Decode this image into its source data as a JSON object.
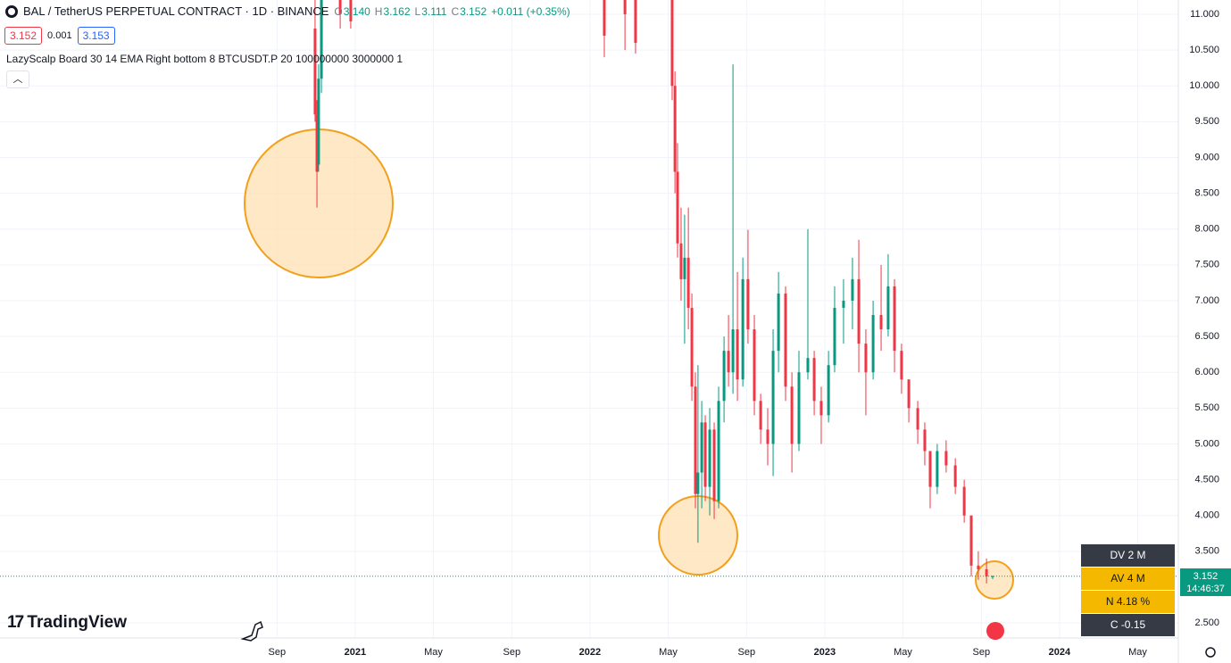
{
  "header": {
    "title": "BAL / TetherUS PERPETUAL CONTRACT · 1D · BINANCE",
    "ohlc": [
      "O",
      "3.140",
      "H",
      "3.162",
      "L",
      "3.111",
      "C",
      "3.152",
      "+0.011 (+0.35%)"
    ]
  },
  "badges": {
    "bid": "3.152",
    "spread": "0.001",
    "ask": "3.153"
  },
  "indicator": "LazyScalp Board 30 14 EMA Right bottom 8 BTCUSDT.P 20 100000000 3000000 1",
  "brand": "TradingView",
  "table": {
    "rows": [
      "DV 2 M",
      "AV 4 M",
      "N 4.18 %",
      "C  -0.15"
    ]
  },
  "chart_data": {
    "type": "candlestick",
    "x": [
      2020.829,
      2020.837,
      2020.844,
      2020.856,
      2020.936,
      2020.981,
      2022.061,
      2022.149,
      2022.194,
      2022.35,
      2022.362,
      2022.373,
      2022.388,
      2022.403,
      2022.419,
      2022.434,
      2022.449,
      2022.46,
      2022.476,
      2022.491,
      2022.51,
      2022.529,
      2022.548,
      2022.571,
      2022.59,
      2022.609,
      2022.628,
      2022.651,
      2022.673,
      2022.7,
      2022.727,
      2022.757,
      2022.78,
      2022.803,
      2022.833,
      2022.86,
      2022.89,
      2022.928,
      2022.955,
      2022.985,
      2023.016,
      2023.042,
      2023.08,
      2023.118,
      2023.145,
      2023.175,
      2023.206,
      2023.24,
      2023.27,
      2023.297,
      2023.327,
      2023.358,
      2023.396,
      2023.426,
      2023.449,
      2023.479,
      2023.517,
      2023.556,
      2023.594,
      2023.624,
      2023.654,
      2023.689,
      2023.715
    ],
    "open": [
      10.8,
      9.6,
      8.9,
      10.1,
      11.4,
      11.3,
      11.3,
      11.2,
      11.4,
      11.2,
      10.0,
      8.8,
      7.8,
      7.3,
      7.6,
      6.9,
      5.8,
      4.3,
      4.6,
      5.3,
      4.4,
      5.2,
      4.2,
      5.6,
      6.3,
      6.0,
      6.6,
      5.9,
      7.3,
      6.6,
      5.6,
      5.2,
      5.0,
      6.3,
      7.1,
      5.8,
      5.0,
      6.0,
      6.2,
      5.6,
      5.4,
      6.1,
      6.9,
      7.0,
      7.3,
      6.4,
      6.0,
      6.8,
      6.6,
      7.2,
      6.3,
      5.9,
      5.5,
      5.2,
      4.9,
      4.4,
      4.9,
      4.7,
      4.4,
      4.0,
      3.3,
      3.25,
      3.14
    ],
    "high": [
      11.5,
      9.8,
      10.3,
      11.5,
      11.6,
      11.5,
      11.5,
      11.4,
      11.5,
      11.3,
      10.2,
      9.2,
      8.3,
      8.2,
      8.3,
      7.1,
      6.0,
      6.1,
      5.6,
      5.4,
      5.5,
      5.3,
      5.8,
      6.5,
      6.8,
      10.3,
      7.4,
      7.6,
      7.99,
      6.8,
      5.7,
      5.5,
      6.6,
      7.4,
      7.2,
      6.0,
      6.3,
      8.0,
      6.3,
      5.8,
      6.3,
      7.2,
      7.3,
      7.6,
      7.85,
      6.6,
      7.0,
      7.5,
      7.65,
      7.3,
      6.4,
      5.9,
      5.6,
      5.3,
      4.9,
      5.0,
      5.05,
      4.8,
      4.5,
      4.0,
      3.5,
      3.4,
      3.162
    ],
    "low": [
      9.5,
      8.3,
      8.8,
      9.9,
      10.8,
      10.8,
      10.4,
      10.5,
      10.45,
      9.8,
      8.5,
      7.6,
      7.0,
      6.4,
      6.6,
      5.6,
      4.1,
      3.62,
      4.1,
      4.2,
      4.0,
      3.95,
      4.1,
      5.3,
      5.8,
      5.7,
      5.6,
      5.8,
      6.4,
      5.4,
      5.0,
      4.7,
      4.55,
      6.0,
      5.6,
      4.6,
      4.9,
      5.9,
      5.4,
      5.0,
      5.3,
      6.0,
      6.4,
      6.6,
      6.0,
      5.4,
      5.9,
      6.3,
      6.5,
      6.0,
      5.7,
      5.3,
      5.0,
      4.7,
      4.1,
      4.3,
      4.6,
      4.3,
      3.9,
      3.15,
      3.1,
      3.05,
      3.111
    ],
    "close": [
      9.6,
      8.8,
      10.1,
      11.3,
      11.0,
      10.9,
      10.7,
      11.0,
      10.6,
      10.0,
      8.8,
      7.8,
      7.3,
      7.6,
      6.9,
      5.8,
      4.3,
      4.6,
      5.3,
      4.4,
      5.2,
      4.2,
      5.6,
      6.3,
      6.0,
      6.6,
      5.9,
      7.3,
      6.6,
      5.6,
      5.2,
      5.0,
      6.3,
      7.1,
      5.8,
      5.0,
      6.0,
      6.2,
      5.6,
      5.4,
      6.1,
      6.9,
      7.0,
      7.3,
      6.4,
      6.0,
      6.8,
      6.6,
      7.2,
      6.3,
      5.9,
      5.5,
      5.2,
      4.9,
      4.4,
      4.9,
      4.7,
      4.4,
      4.0,
      3.3,
      3.25,
      3.15,
      3.152
    ],
    "up_color": "#089981",
    "down_color": "#f23645",
    "xlim": [
      2019.487,
      2024.506
    ],
    "xticks": [
      {
        "value": 2020.667,
        "label": "Sep"
      },
      2021,
      {
        "value": 2021.333,
        "label": "May"
      },
      {
        "value": 2021.667,
        "label": "Sep"
      },
      2022,
      {
        "value": 2022.333,
        "label": "May"
      },
      {
        "value": 2022.667,
        "label": "Sep"
      },
      2023,
      {
        "value": 2023.333,
        "label": "May"
      },
      {
        "value": 2023.667,
        "label": "Sep"
      },
      2024,
      {
        "value": 2024.333,
        "label": "May"
      }
    ],
    "ylim": [
      2.289,
      11.199
    ],
    "yticks": [
      {
        "value": 2.5,
        "label": "2.500"
      },
      {
        "value": 3.5,
        "label": "3.500"
      },
      {
        "value": 4,
        "label": "4.000"
      },
      {
        "value": 4.5,
        "label": "4.500"
      },
      {
        "value": 5,
        "label": "5.000"
      },
      {
        "value": 5.5,
        "label": "5.500"
      },
      {
        "value": 6,
        "label": "6.000"
      },
      {
        "value": 6.5,
        "label": "6.500"
      },
      {
        "value": 7,
        "label": "7.000"
      },
      {
        "value": 7.5,
        "label": "7.500"
      },
      {
        "value": 8,
        "label": "8.000"
      },
      {
        "value": 8.5,
        "label": "8.500"
      },
      {
        "value": 9,
        "label": "9.000"
      },
      {
        "value": 9.5,
        "label": "9.500"
      },
      {
        "value": 10,
        "label": "10.000"
      },
      {
        "value": 10.5,
        "label": "10.500"
      },
      {
        "value": 11,
        "label": "11.000"
      }
    ],
    "grid": true,
    "last_price": 3.152,
    "countdown": "14:46:37"
  }
}
